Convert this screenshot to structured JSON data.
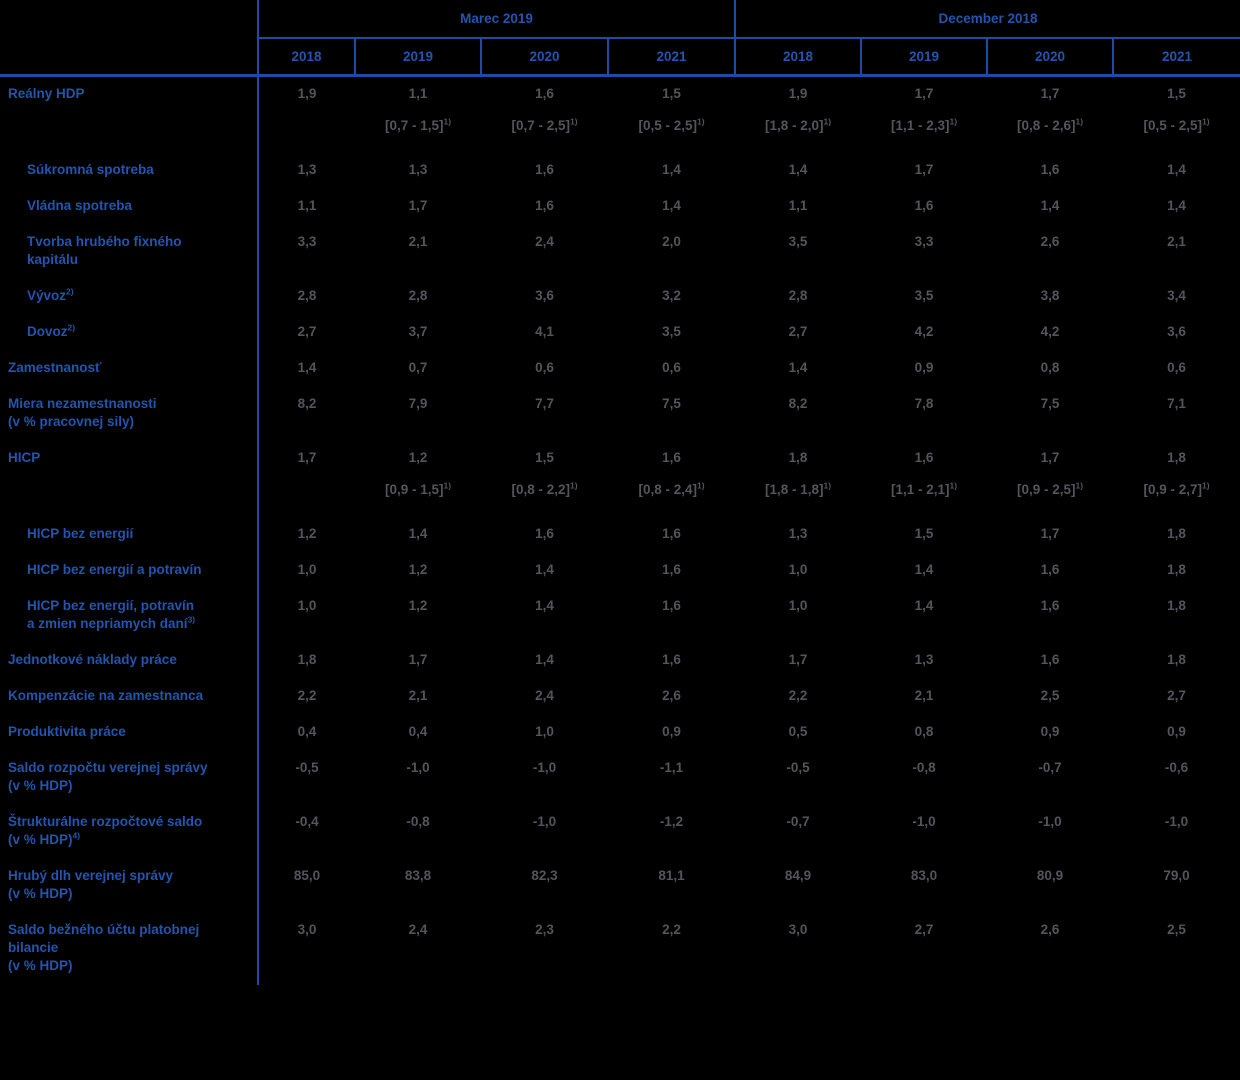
{
  "colors": {
    "accent_blue": "#2454ae",
    "border_blue": "#1d4ca6",
    "value_gray": "#54545c",
    "background": "#000000"
  },
  "header": {
    "groups": [
      {
        "label": "Marec 2019",
        "years": [
          "2018",
          "2019",
          "2020",
          "2021"
        ]
      },
      {
        "label": "December 2018",
        "years": [
          "2018",
          "2019",
          "2020",
          "2021"
        ]
      }
    ]
  },
  "table": {
    "range_footnote_mark": "1)",
    "rows": [
      {
        "label": "Reálny HDP",
        "indent": false,
        "values": [
          "1,9",
          "1,1",
          "1,6",
          "1,5",
          "1,9",
          "1,7",
          "1,7",
          "1,5"
        ],
        "ranges": [
          "",
          "[0,7 - 1,5]",
          "[0,7 - 2,5]",
          "[0,5 - 2,5]",
          "[1,8 - 2,0]",
          "[1,1 - 2,3]",
          "[0,8 - 2,6]",
          "[0,5 - 2,5]"
        ],
        "range_sup": "1)"
      },
      {
        "label": "Súkromná spotreba",
        "indent": true,
        "values": [
          "1,3",
          "1,3",
          "1,6",
          "1,4",
          "1,4",
          "1,7",
          "1,6",
          "1,4"
        ]
      },
      {
        "label": "Vládna spotreba",
        "indent": true,
        "values": [
          "1,1",
          "1,7",
          "1,6",
          "1,4",
          "1,1",
          "1,6",
          "1,4",
          "1,4"
        ]
      },
      {
        "label": "Tvorba hrubého fixného\nkapitálu",
        "indent": true,
        "values": [
          "3,3",
          "2,1",
          "2,4",
          "2,0",
          "3,5",
          "3,3",
          "2,6",
          "2,1"
        ]
      },
      {
        "label": "Vývoz",
        "sup": "2)",
        "indent": true,
        "values": [
          "2,8",
          "2,8",
          "3,6",
          "3,2",
          "2,8",
          "3,5",
          "3,8",
          "3,4"
        ]
      },
      {
        "label": "Dovoz",
        "sup": "2)",
        "indent": true,
        "values": [
          "2,7",
          "3,7",
          "4,1",
          "3,5",
          "2,7",
          "4,2",
          "4,2",
          "3,6"
        ]
      },
      {
        "label": "Zamestnanosť",
        "indent": false,
        "values": [
          "1,4",
          "0,7",
          "0,6",
          "0,6",
          "1,4",
          "0,9",
          "0,8",
          "0,6"
        ]
      },
      {
        "label": "Miera nezamestnanosti\n(v % pracovnej sily)",
        "indent": false,
        "values": [
          "8,2",
          "7,9",
          "7,7",
          "7,5",
          "8,2",
          "7,8",
          "7,5",
          "7,1"
        ]
      },
      {
        "label": "HICP",
        "indent": false,
        "values": [
          "1,7",
          "1,2",
          "1,5",
          "1,6",
          "1,8",
          "1,6",
          "1,7",
          "1,8"
        ],
        "ranges": [
          "",
          "[0,9 - 1,5]",
          "[0,8 - 2,2]",
          "[0,8 - 2,4]",
          "[1,8 - 1,8]",
          "[1,1 - 2,1]",
          "[0,9 - 2,5]",
          "[0,9 - 2,7]"
        ],
        "range_sup": "1)"
      },
      {
        "label": "HICP bez energií",
        "indent": true,
        "values": [
          "1,2",
          "1,4",
          "1,6",
          "1,6",
          "1,3",
          "1,5",
          "1,7",
          "1,8"
        ]
      },
      {
        "label": "HICP bez energií a potravín",
        "indent": true,
        "values": [
          "1,0",
          "1,2",
          "1,4",
          "1,6",
          "1,0",
          "1,4",
          "1,6",
          "1,8"
        ]
      },
      {
        "label": "HICP bez energií, potravín\na zmien nepriamych daní",
        "sup": "3)",
        "indent": true,
        "values": [
          "1,0",
          "1,2",
          "1,4",
          "1,6",
          "1,0",
          "1,4",
          "1,6",
          "1,8"
        ]
      },
      {
        "label": "Jednotkové náklady práce",
        "indent": false,
        "values": [
          "1,8",
          "1,7",
          "1,4",
          "1,6",
          "1,7",
          "1,3",
          "1,6",
          "1,8"
        ]
      },
      {
        "label": "Kompenzácie na zamestnanca",
        "indent": false,
        "values": [
          "2,2",
          "2,1",
          "2,4",
          "2,6",
          "2,2",
          "2,1",
          "2,5",
          "2,7"
        ]
      },
      {
        "label": "Produktivita práce",
        "indent": false,
        "values": [
          "0,4",
          "0,4",
          "1,0",
          "0,9",
          "0,5",
          "0,8",
          "0,9",
          "0,9"
        ]
      },
      {
        "label": "Saldo rozpočtu verejnej správy\n(v % HDP)",
        "indent": false,
        "values": [
          "-0,5",
          "-1,0",
          "-1,0",
          "-1,1",
          "-0,5",
          "-0,8",
          "-0,7",
          "-0,6"
        ]
      },
      {
        "label": "Štrukturálne rozpočtové saldo\n(v % HDP)",
        "sup": "4)",
        "indent": false,
        "values": [
          "-0,4",
          "-0,8",
          "-1,0",
          "-1,2",
          "-0,7",
          "-1,0",
          "-1,0",
          "-1,0"
        ]
      },
      {
        "label": "Hrubý dlh verejnej správy\n(v % HDP)",
        "indent": false,
        "values": [
          "85,0",
          "83,8",
          "82,3",
          "81,1",
          "84,9",
          "83,0",
          "80,9",
          "79,0"
        ]
      },
      {
        "label": "Saldo bežného účtu platobnej\nbilancie\n(v % HDP)",
        "indent": false,
        "values": [
          "3,0",
          "2,4",
          "2,3",
          "2,2",
          "3,0",
          "2,7",
          "2,6",
          "2,5"
        ]
      }
    ]
  }
}
